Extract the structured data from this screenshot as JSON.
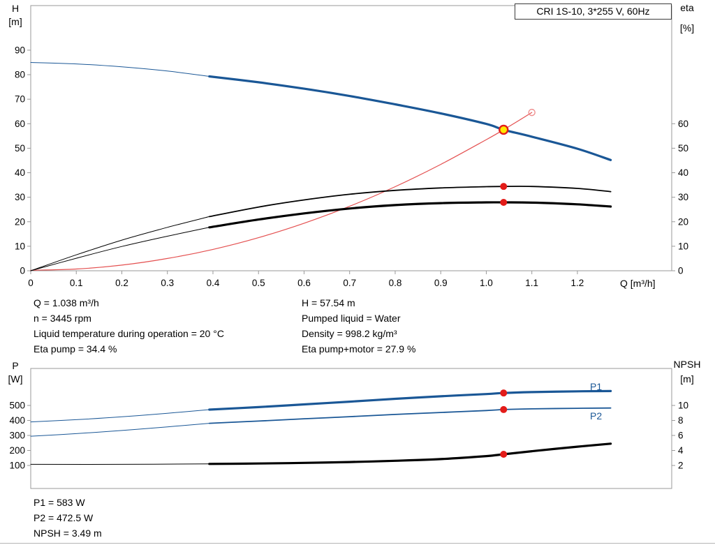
{
  "colors": {
    "blue": "#1a5796",
    "black": "#000000",
    "red_curve": "#e45050",
    "red_marker": "#e31c19",
    "red_open": "#ef8f8f",
    "op_fill": "#ffe800",
    "frame": "#999999"
  },
  "chart_data": [
    {
      "type": "line",
      "title": "CRI 1S-10, 3*255 V, 60Hz",
      "xlabel": "Q [m³/h]",
      "ylabel_left_sym": "H",
      "ylabel_left_unit": "[m]",
      "ylabel_right_sym": "eta",
      "ylabel_right_unit": "[%]",
      "x_range": [
        0,
        1.407
      ],
      "y_range": [
        0,
        108.2
      ],
      "right_scale": 1,
      "grid": false,
      "x_ticks": [
        0,
        0.1,
        0.2,
        0.3,
        0.4,
        0.5,
        0.6,
        0.7,
        0.8,
        0.9,
        1.0,
        1.1,
        1.2
      ],
      "x_tick_labels": [
        "0",
        "0.1",
        "0.2",
        "0.3",
        "0.4",
        "0.5",
        "0.6",
        "0.7",
        "0.8",
        "0.9",
        "1.0",
        "1.1",
        "1.2"
      ],
      "y_left_ticks": [
        0,
        10,
        20,
        30,
        40,
        50,
        60,
        70,
        80,
        90
      ],
      "y_right_ticks": [
        0,
        10,
        20,
        30,
        40,
        50,
        60
      ],
      "series": [
        {
          "name": "system-curve",
          "axis": "left",
          "color": "red_curve",
          "width": 1.2,
          "points": [
            [
              0,
              0.2
            ],
            [
              0.1,
              0.7
            ],
            [
              0.2,
              2.3
            ],
            [
              0.3,
              5.0
            ],
            [
              0.4,
              8.7
            ],
            [
              0.5,
              13.5
            ],
            [
              0.6,
              19.4
            ],
            [
              0.7,
              26.3
            ],
            [
              0.8,
              34.3
            ],
            [
              0.9,
              43.4
            ],
            [
              1.0,
              53.5
            ],
            [
              1.038,
              57.54
            ],
            [
              1.1,
              64.6
            ]
          ]
        },
        {
          "name": "head-curve-ext",
          "axis": "left",
          "color": "blue",
          "width": 1,
          "points": [
            [
              0,
              85
            ],
            [
              0.1,
              84.4
            ],
            [
              0.2,
              83.2
            ],
            [
              0.3,
              81.5
            ],
            [
              0.392,
              79.3
            ]
          ]
        },
        {
          "name": "head-curve",
          "axis": "left",
          "color": "blue",
          "width": 3.2,
          "points": [
            [
              0.392,
              79.3
            ],
            [
              0.5,
              76.9
            ],
            [
              0.6,
              74.3
            ],
            [
              0.7,
              71.3
            ],
            [
              0.8,
              67.9
            ],
            [
              0.9,
              64.2
            ],
            [
              1.0,
              59.9
            ],
            [
              1.038,
              57.54
            ],
            [
              1.1,
              54.7
            ],
            [
              1.2,
              49.8
            ],
            [
              1.273,
              45.2
            ]
          ]
        },
        {
          "name": "eta-pump-ext",
          "axis": "right",
          "color": "black",
          "width": 1,
          "points": [
            [
              0,
              0
            ],
            [
              0.1,
              6.5
            ],
            [
              0.2,
              12.5
            ],
            [
              0.3,
              17.7
            ],
            [
              0.392,
              22.1
            ]
          ]
        },
        {
          "name": "eta-pump-curve",
          "axis": "right",
          "color": "black",
          "width": 1.8,
          "points": [
            [
              0.392,
              22.1
            ],
            [
              0.5,
              26.0
            ],
            [
              0.6,
              28.9
            ],
            [
              0.7,
              31.2
            ],
            [
              0.8,
              32.8
            ],
            [
              0.9,
              33.8
            ],
            [
              1.0,
              34.3
            ],
            [
              1.038,
              34.4
            ],
            [
              1.1,
              34.4
            ],
            [
              1.2,
              33.6
            ],
            [
              1.273,
              32.3
            ]
          ]
        },
        {
          "name": "eta-pump-motor-ext",
          "axis": "right",
          "color": "black",
          "width": 1,
          "points": [
            [
              0,
              0
            ],
            [
              0.1,
              5.1
            ],
            [
              0.2,
              9.9
            ],
            [
              0.3,
              14.1
            ],
            [
              0.392,
              17.7
            ]
          ]
        },
        {
          "name": "eta-pump-motor-curve",
          "axis": "right",
          "color": "black",
          "width": 3.2,
          "points": [
            [
              0.392,
              17.7
            ],
            [
              0.5,
              20.9
            ],
            [
              0.6,
              23.4
            ],
            [
              0.7,
              25.4
            ],
            [
              0.8,
              26.8
            ],
            [
              0.9,
              27.6
            ],
            [
              1.0,
              27.9
            ],
            [
              1.038,
              27.9
            ],
            [
              1.1,
              27.8
            ],
            [
              1.2,
              27.1
            ],
            [
              1.273,
              26.2
            ]
          ]
        }
      ],
      "markers": [
        {
          "name": "duty-point-marker",
          "x": 1.038,
          "y": 57.54,
          "style": "op"
        },
        {
          "name": "system-curve-end-marker",
          "x": 1.1,
          "y": 64.6,
          "style": "open"
        },
        {
          "name": "eta-pump-marker",
          "x": 1.038,
          "y": 34.4,
          "style": "dot"
        },
        {
          "name": "eta-pump-motor-marker",
          "x": 1.038,
          "y": 27.9,
          "style": "dot"
        }
      ]
    },
    {
      "type": "line",
      "title": "",
      "xlabel": "",
      "ylabel_left_sym": "P",
      "ylabel_left_unit": "[W]",
      "ylabel_right_sym": "NPSH",
      "ylabel_right_unit": "[m]",
      "x_range": [
        0,
        1.407
      ],
      "y_range": [
        -53.5,
        746.5
      ],
      "right_scale": 50,
      "grid": false,
      "x_ticks": [],
      "x_tick_labels": null,
      "y_left_ticks": [
        100,
        200,
        300,
        400,
        500
      ],
      "y_right_ticks": [
        2,
        4,
        6,
        8,
        10
      ],
      "series": [
        {
          "name": "p1-curve-ext",
          "axis": "left",
          "color": "blue",
          "width": 1,
          "points": [
            [
              0,
              390
            ],
            [
              0.1,
              405
            ],
            [
              0.2,
              424
            ],
            [
              0.3,
              448
            ],
            [
              0.392,
              472
            ]
          ]
        },
        {
          "name": "p1-curve",
          "axis": "left",
          "color": "blue",
          "width": 3.2,
          "points": [
            [
              0.392,
              472
            ],
            [
              0.5,
              489
            ],
            [
              0.6,
              507
            ],
            [
              0.7,
              525
            ],
            [
              0.8,
              544
            ],
            [
              0.9,
              561
            ],
            [
              1.0,
              576
            ],
            [
              1.038,
              583
            ],
            [
              1.1,
              589
            ],
            [
              1.2,
              594
            ],
            [
              1.273,
              596
            ]
          ]
        },
        {
          "name": "p2-curve-ext",
          "axis": "left",
          "color": "blue",
          "width": 1,
          "points": [
            [
              0,
              295
            ],
            [
              0.1,
              312
            ],
            [
              0.2,
              333
            ],
            [
              0.3,
              357
            ],
            [
              0.392,
              381
            ]
          ]
        },
        {
          "name": "p2-curve",
          "axis": "left",
          "color": "blue",
          "width": 1.8,
          "points": [
            [
              0.392,
              381
            ],
            [
              0.5,
              396
            ],
            [
              0.6,
              411
            ],
            [
              0.7,
              425
            ],
            [
              0.8,
              440
            ],
            [
              0.9,
              453
            ],
            [
              1.0,
              466
            ],
            [
              1.038,
              472.5
            ],
            [
              1.1,
              477
            ],
            [
              1.2,
              481
            ],
            [
              1.273,
              483
            ]
          ]
        },
        {
          "name": "npsh-curve-ext",
          "axis": "right",
          "color": "black",
          "width": 1,
          "points": [
            [
              0,
              2.15
            ],
            [
              0.2,
              2.15
            ],
            [
              0.392,
              2.2
            ]
          ]
        },
        {
          "name": "npsh-curve",
          "axis": "right",
          "color": "black",
          "width": 3.2,
          "points": [
            [
              0.392,
              2.2
            ],
            [
              0.5,
              2.26
            ],
            [
              0.6,
              2.34
            ],
            [
              0.7,
              2.46
            ],
            [
              0.8,
              2.62
            ],
            [
              0.9,
              2.85
            ],
            [
              1.0,
              3.25
            ],
            [
              1.038,
              3.49
            ],
            [
              1.1,
              3.9
            ],
            [
              1.2,
              4.5
            ],
            [
              1.273,
              4.9
            ]
          ]
        }
      ],
      "markers": [
        {
          "name": "p1-marker",
          "x": 1.038,
          "y": 583,
          "style": "dot"
        },
        {
          "name": "p2-marker",
          "x": 1.038,
          "y": 472.5,
          "style": "dot"
        },
        {
          "name": "npsh-marker",
          "axis": "right",
          "x": 1.038,
          "y": 3.49,
          "style": "dot"
        }
      ],
      "curve_labels": {
        "p1": "P1",
        "p2": "P2"
      }
    }
  ],
  "annotations": {
    "upper_left": [
      "Q = 1.038 m³/h",
      "n = 3445 rpm",
      "Liquid temperature during operation = 20 °C",
      "Eta pump = 34.4 %"
    ],
    "upper_right": [
      "H = 57.54 m",
      "Pumped liquid = Water",
      "Density = 998.2 kg/m³",
      "Eta pump+motor = 27.9 %"
    ],
    "lower": [
      "P1 = 583 W",
      "P2 = 472.5 W",
      "NPSH = 3.49 m"
    ]
  }
}
